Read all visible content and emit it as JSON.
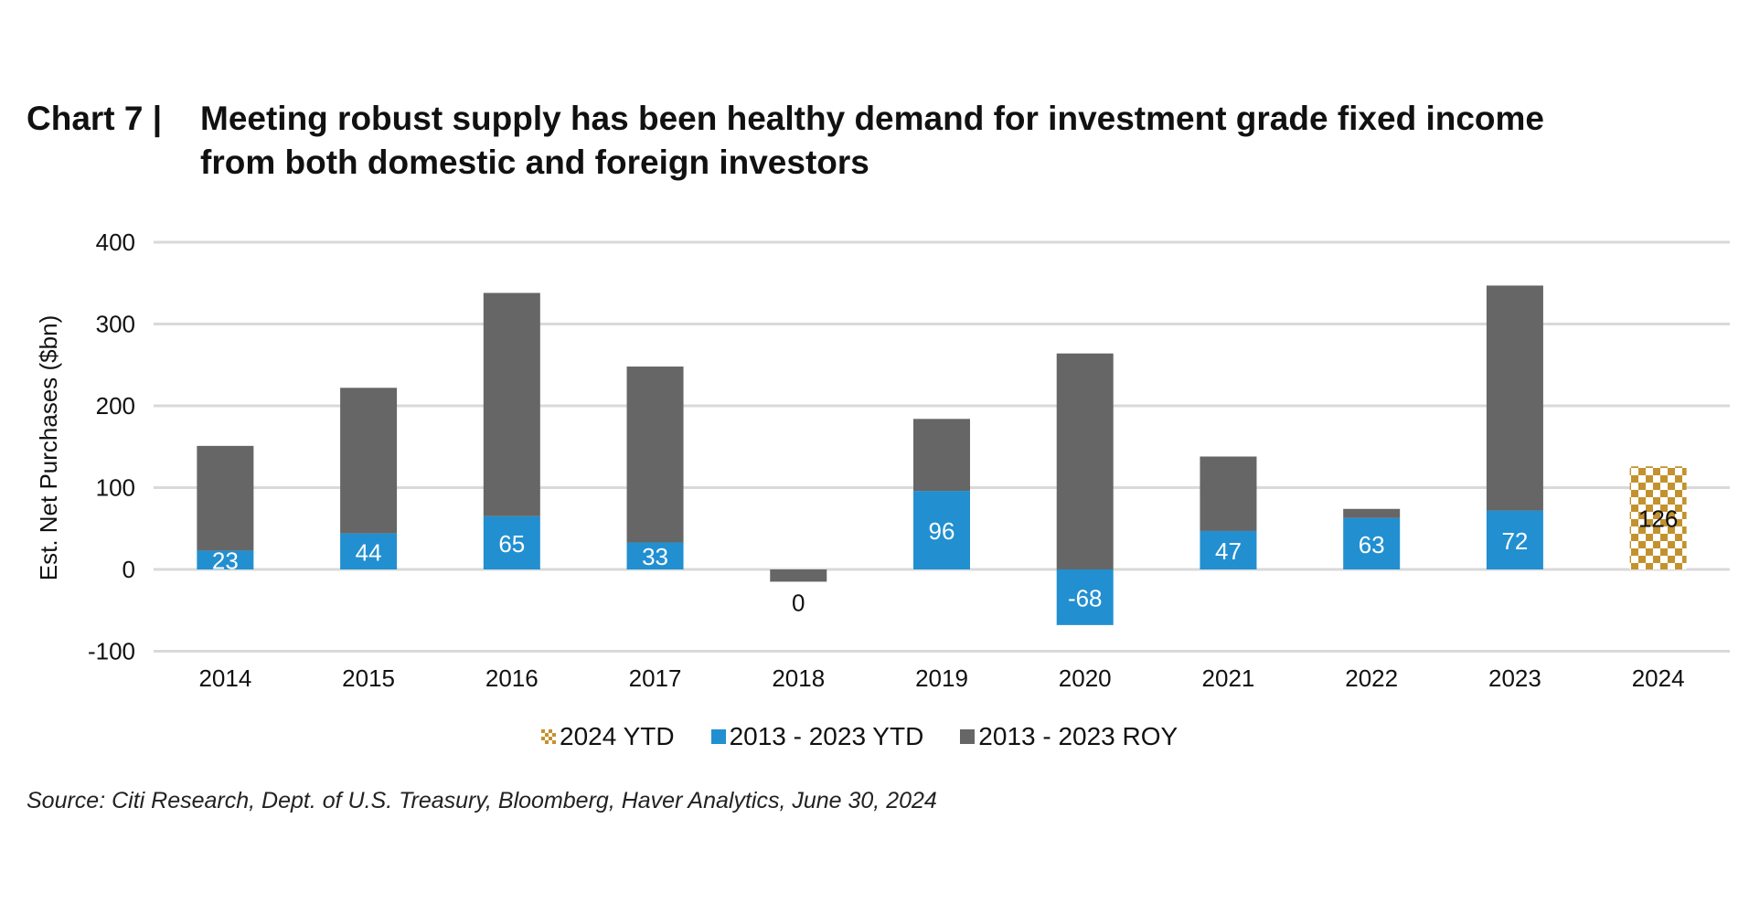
{
  "title": {
    "chart_number": "Chart 7  |",
    "line1": "Meeting robust supply has been healthy demand for investment grade fixed income",
    "line2": "from both domestic and foreign investors"
  },
  "source": "Source: Citi Research, Dept. of U.S. Treasury, Bloomberg, Haver Analytics, June 30, 2024",
  "colors": {
    "ytd_2024": "#C3922E",
    "ytd_hist": "#228FD0",
    "roy_hist": "#666666",
    "grid": "#D9D9D9"
  },
  "chart_data": {
    "type": "bar",
    "stacked": true,
    "title": "Meeting robust supply has been healthy demand for investment grade fixed income from both domestic and foreign investors",
    "xlabel": "",
    "ylabel": "Est. Net Purchases ($bn)",
    "ylim": [
      -100,
      400
    ],
    "yticks": [
      "400",
      "300",
      "200",
      "100",
      "0",
      "-100"
    ],
    "ytick_values": [
      400,
      300,
      200,
      100,
      0,
      -100
    ],
    "grid": true,
    "legend_position": "bottom",
    "categories": [
      "2014",
      "2015",
      "2016",
      "2017",
      "2018",
      "2019",
      "2020",
      "2021",
      "2022",
      "2023",
      "2024"
    ],
    "series": [
      {
        "name": "2024 YTD",
        "values": [
          null,
          null,
          null,
          null,
          null,
          null,
          null,
          null,
          null,
          null,
          126
        ],
        "labels": [
          "",
          "",
          "",
          "",
          "",
          "",
          "",
          "",
          "",
          "",
          "126"
        ]
      },
      {
        "name": "2013 - 2023 YTD",
        "values": [
          23,
          44,
          65,
          33,
          0,
          96,
          -68,
          47,
          63,
          72,
          null
        ],
        "labels": [
          "23",
          "44",
          "65",
          "33",
          "0",
          "96",
          "-68",
          "47",
          "63",
          "72",
          ""
        ]
      },
      {
        "name": "2013 - 2023 ROY",
        "values": [
          128,
          178,
          273,
          215,
          -15,
          88,
          264,
          91,
          11,
          275,
          null
        ]
      }
    ]
  }
}
